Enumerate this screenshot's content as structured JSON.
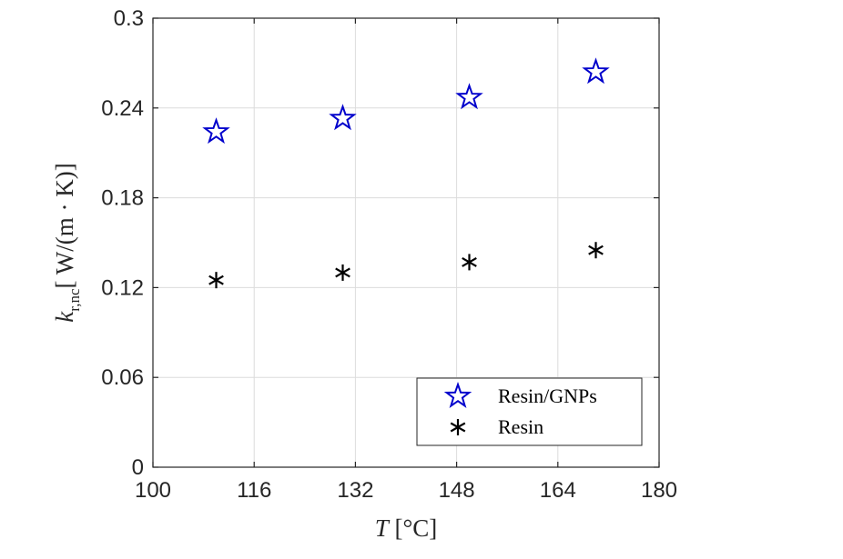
{
  "chart_data": {
    "type": "scatter",
    "xlabel": "T [°C]",
    "ylabel": "k_r,nc [ W/(m·K)]",
    "xlim": [
      100,
      180
    ],
    "ylim": [
      0,
      0.3
    ],
    "xticks": [
      "100",
      "116",
      "132",
      "148",
      "164",
      "180"
    ],
    "yticks": [
      "0",
      "0.06",
      "0.12",
      "0.18",
      "0.24",
      "0.3"
    ],
    "grid": true,
    "legend": "bottom-right",
    "series": [
      {
        "name": "Resin/GNPs",
        "marker": "star",
        "color": "#0000cc",
        "x": [
          110,
          130,
          150,
          170
        ],
        "y": [
          0.224,
          0.233,
          0.247,
          0.264
        ]
      },
      {
        "name": "Resin",
        "marker": "asterisk",
        "color": "#000000",
        "x": [
          110,
          130,
          150,
          170
        ],
        "y": [
          0.125,
          0.13,
          0.137,
          0.145
        ]
      }
    ]
  }
}
